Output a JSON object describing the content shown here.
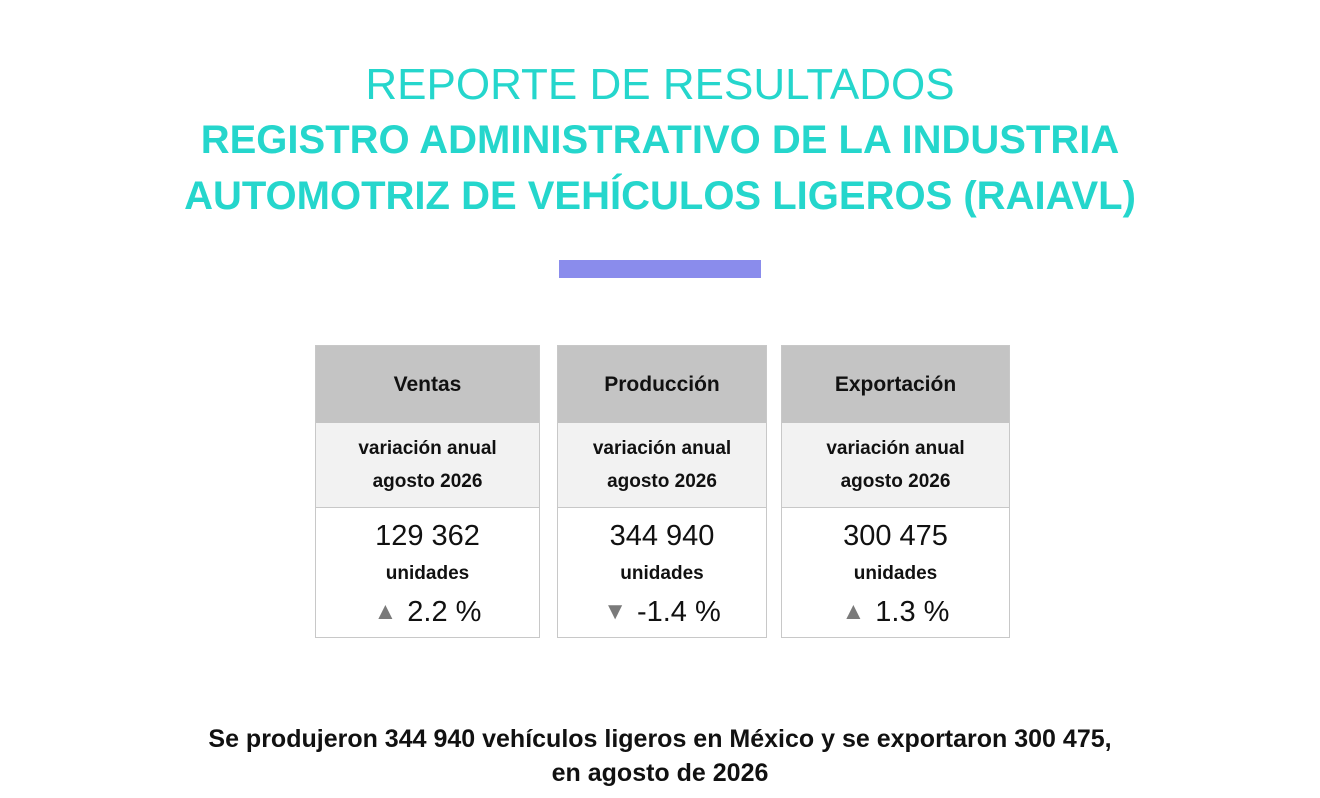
{
  "header": {
    "line1": "REPORTE DE RESULTADOS",
    "line2": "REGISTRO ADMINISTRATIVO DE LA INDUSTRIA",
    "line3": "AUTOMOTRIZ DE VEHÍCULOS LIGEROS (RAIAVL)"
  },
  "colors": {
    "title": "#25d6cc",
    "divider": "#8a8cec",
    "card_header": "#c4c4c4",
    "card_subheader": "#f2f2f2",
    "arrow": "#7a7a7a"
  },
  "cards": [
    {
      "title": "Ventas",
      "subtitle_line1": "variación anual",
      "subtitle_line2": "agosto 2026",
      "value": "129 362",
      "units": "unidades",
      "arrow": "▲",
      "arrow_icon": "triangle-up-icon",
      "change": "2.2 %"
    },
    {
      "title": "Producción",
      "subtitle_line1": "variación anual",
      "subtitle_line2": "agosto 2026",
      "value": "344 940",
      "units": "unidades",
      "arrow": "▼",
      "arrow_icon": "triangle-down-icon",
      "change": "-1.4 %"
    },
    {
      "title": "Exportación",
      "subtitle_line1": "variación anual",
      "subtitle_line2": "agosto 2026",
      "value": "300 475",
      "units": "unidades",
      "arrow": "▲",
      "arrow_icon": "triangle-up-icon",
      "change": "1.3 %"
    }
  ],
  "footer": {
    "line1": "Se produjeron 344 940 vehículos ligeros en México y se exportaron 300 475,",
    "line2": "en agosto de 2026"
  }
}
